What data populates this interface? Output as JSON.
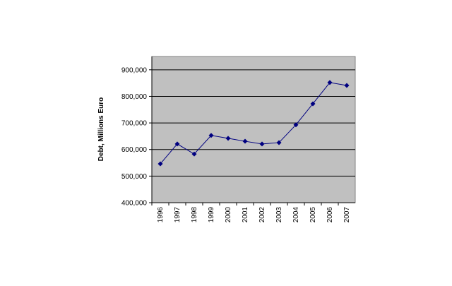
{
  "chart_data": {
    "type": "line",
    "y_label": "Debt, Millions Euro",
    "categories": [
      "1996",
      "1997",
      "1998",
      "1999",
      "2000",
      "2001",
      "2002",
      "2003",
      "2004",
      "2005",
      "2006",
      "2007"
    ],
    "series": [
      {
        "name": "Debt",
        "color": "#000080",
        "values": [
          546000,
          621000,
          583000,
          653000,
          642000,
          631000,
          621000,
          626000,
          693000,
          772000,
          852000,
          841000
        ]
      }
    ],
    "ylim": [
      400000,
      950000
    ],
    "yticks": [
      {
        "value": 400000,
        "label": "400,000"
      },
      {
        "value": 500000,
        "label": "500,000"
      },
      {
        "value": 600000,
        "label": "600,000"
      },
      {
        "value": 700000,
        "label": "700,000"
      },
      {
        "value": 800000,
        "label": "800,000"
      },
      {
        "value": 900000,
        "label": "900,000"
      }
    ],
    "grid": true,
    "background": "#c0c0c0"
  }
}
